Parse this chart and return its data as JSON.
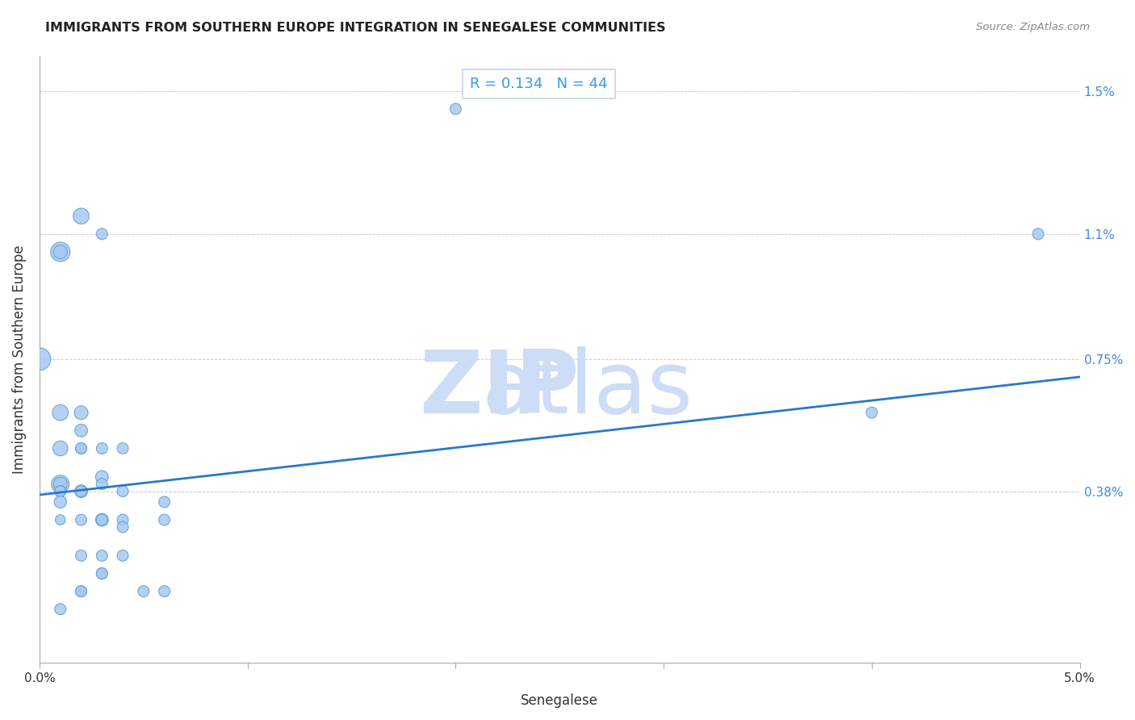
{
  "title": "IMMIGRANTS FROM SOUTHERN EUROPE INTEGRATION IN SENEGALESE COMMUNITIES",
  "source": "Source: ZipAtlas.com",
  "xlabel": "Senegalese",
  "ylabel": "Immigrants from Southern Europe",
  "R": 0.134,
  "N": 44,
  "x_min": 0.0,
  "x_max": 0.05,
  "y_min": -0.001,
  "y_max": 0.016,
  "x_ticks": [
    0.0,
    0.01,
    0.02,
    0.03,
    0.04,
    0.05
  ],
  "x_tick_labels": [
    "0.0%",
    "",
    "",
    "",
    "",
    "5.0%"
  ],
  "y_ticks": [
    0.0,
    0.0038,
    0.0075,
    0.011,
    0.015
  ],
  "y_tick_labels_right": [
    "0.38%",
    "0.75%",
    "1.1%",
    "1.5%"
  ],
  "scatter_color": "#a8c8f0",
  "scatter_edge_color": "#5a9fd4",
  "line_color": "#2979cc",
  "watermark_zip_color": "#ccddf5",
  "watermark_atlas_color": "#ccddf5",
  "background_color": "#ffffff",
  "grid_color": "#cccccc",
  "annotation_border_color": "#c8d4e8",
  "points": [
    [
      0.001,
      0.0105
    ],
    [
      0.001,
      0.0105
    ],
    [
      0.002,
      0.0115
    ],
    [
      0.003,
      0.011
    ],
    [
      0.001,
      0.0005
    ],
    [
      0.0,
      0.0075
    ],
    [
      0.001,
      0.006
    ],
    [
      0.001,
      0.005
    ],
    [
      0.001,
      0.004
    ],
    [
      0.001,
      0.004
    ],
    [
      0.001,
      0.0038
    ],
    [
      0.001,
      0.0038
    ],
    [
      0.001,
      0.0035
    ],
    [
      0.001,
      0.003
    ],
    [
      0.002,
      0.006
    ],
    [
      0.002,
      0.0055
    ],
    [
      0.002,
      0.005
    ],
    [
      0.002,
      0.005
    ],
    [
      0.002,
      0.0038
    ],
    [
      0.002,
      0.0038
    ],
    [
      0.002,
      0.003
    ],
    [
      0.002,
      0.002
    ],
    [
      0.002,
      0.001
    ],
    [
      0.002,
      0.001
    ],
    [
      0.003,
      0.005
    ],
    [
      0.003,
      0.0042
    ],
    [
      0.003,
      0.004
    ],
    [
      0.003,
      0.003
    ],
    [
      0.003,
      0.003
    ],
    [
      0.003,
      0.002
    ],
    [
      0.003,
      0.0015
    ],
    [
      0.003,
      0.0015
    ],
    [
      0.004,
      0.005
    ],
    [
      0.004,
      0.003
    ],
    [
      0.004,
      0.002
    ],
    [
      0.004,
      0.0028
    ],
    [
      0.004,
      0.0038
    ],
    [
      0.006,
      0.0035
    ],
    [
      0.006,
      0.003
    ],
    [
      0.006,
      0.001
    ],
    [
      0.02,
      0.0145
    ],
    [
      0.04,
      0.006
    ],
    [
      0.048,
      0.011
    ],
    [
      0.005,
      0.001
    ]
  ],
  "sizes": [
    300,
    150,
    200,
    100,
    100,
    400,
    200,
    180,
    250,
    150,
    100,
    100,
    120,
    80,
    150,
    130,
    100,
    100,
    130,
    100,
    100,
    100,
    100,
    100,
    100,
    130,
    100,
    130,
    100,
    100,
    100,
    100,
    100,
    100,
    100,
    100,
    100,
    100,
    100,
    100,
    100,
    100,
    100,
    100
  ],
  "line_x": [
    0.0,
    0.05
  ],
  "line_y": [
    0.0037,
    0.007
  ],
  "stats_label_R": "R = ",
  "stats_value_R": "0.134",
  "stats_label_N": "   N = ",
  "stats_value_N": "44",
  "stats_color_label": "#333355",
  "stats_color_value": "#3399ee"
}
